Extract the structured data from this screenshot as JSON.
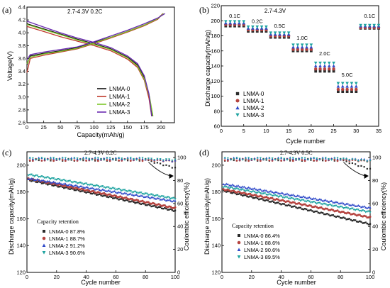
{
  "colors": {
    "LNMA-0": "#2b2b2b",
    "LNMA-1": "#b5433f",
    "LNMA-2": "#2f49c9",
    "LNMA-3": "#1ea3a0",
    "voltage_LNMA-0": "#111111",
    "voltage_LNMA-1": "#c0392b",
    "voltage_LNMA-2": "#7dc62a",
    "voltage_LNMA-3": "#6a2bb0"
  },
  "chart_data": [
    {
      "panel": "(a)",
      "type": "line",
      "annotation": "2.7-4.3V 0.2C",
      "xlabel": "Capacity(mAh/g)",
      "ylabel": "Voltage(V)",
      "xlim": [
        0,
        220
      ],
      "ylim": [
        2.6,
        4.4
      ],
      "xticks": [
        "0",
        "25",
        "50",
        "75",
        "100",
        "125",
        "150",
        "175",
        "200"
      ],
      "yticks": [
        "2.6",
        "2.8",
        "3.0",
        "3.2",
        "3.4",
        "3.6",
        "3.8",
        "4.0",
        "4.2",
        "4.4"
      ],
      "legend": {
        "placement": "bottom-right",
        "entries": [
          "LNMA-0",
          "LNMA-1",
          "LNMA-2",
          "LNMA-3"
        ]
      },
      "series": [
        {
          "name": "LNMA-0",
          "charge": [
            [
              0,
              3.5
            ],
            [
              5,
              3.64
            ],
            [
              25,
              3.68
            ],
            [
              50,
              3.72
            ],
            [
              75,
              3.77
            ],
            [
              100,
              3.85
            ],
            [
              125,
              3.93
            ],
            [
              150,
              4.02
            ],
            [
              175,
              4.12
            ],
            [
              195,
              4.22
            ],
            [
              203,
              4.3
            ]
          ],
          "discharge": [
            [
              0,
              4.14
            ],
            [
              25,
              4.06
            ],
            [
              50,
              3.98
            ],
            [
              75,
              3.9
            ],
            [
              100,
              3.83
            ],
            [
              125,
              3.75
            ],
            [
              150,
              3.62
            ],
            [
              165,
              3.5
            ],
            [
              175,
              3.3
            ],
            [
              182,
              3.0
            ],
            [
              187,
              2.7
            ]
          ]
        },
        {
          "name": "LNMA-1",
          "charge": [
            [
              0,
              3.38
            ],
            [
              5,
              3.6
            ],
            [
              25,
              3.65
            ],
            [
              50,
              3.7
            ],
            [
              75,
              3.75
            ],
            [
              100,
              3.83
            ],
            [
              125,
              3.92
            ],
            [
              150,
              4.01
            ],
            [
              175,
              4.11
            ],
            [
              195,
              4.21
            ],
            [
              203,
              4.3
            ]
          ],
          "discharge": [
            [
              0,
              4.1
            ],
            [
              25,
              4.02
            ],
            [
              50,
              3.94
            ],
            [
              75,
              3.87
            ],
            [
              100,
              3.8
            ],
            [
              125,
              3.72
            ],
            [
              150,
              3.59
            ],
            [
              165,
              3.46
            ],
            [
              175,
              3.26
            ],
            [
              182,
              2.98
            ],
            [
              186,
              2.7
            ]
          ]
        },
        {
          "name": "LNMA-2",
          "charge": [
            [
              0,
              3.52
            ],
            [
              5,
              3.62
            ],
            [
              25,
              3.67
            ],
            [
              50,
              3.71
            ],
            [
              75,
              3.76
            ],
            [
              100,
              3.84
            ],
            [
              125,
              3.93
            ],
            [
              150,
              4.02
            ],
            [
              175,
              4.12
            ],
            [
              195,
              4.22
            ],
            [
              204,
              4.3
            ]
          ],
          "discharge": [
            [
              0,
              4.13
            ],
            [
              25,
              4.05
            ],
            [
              50,
              3.97
            ],
            [
              75,
              3.89
            ],
            [
              100,
              3.82
            ],
            [
              125,
              3.74
            ],
            [
              150,
              3.61
            ],
            [
              165,
              3.48
            ],
            [
              175,
              3.28
            ],
            [
              183,
              3.0
            ],
            [
              188,
              2.7
            ]
          ]
        },
        {
          "name": "LNMA-3",
          "charge": [
            [
              0,
              3.58
            ],
            [
              5,
              3.66
            ],
            [
              25,
              3.7
            ],
            [
              50,
              3.74
            ],
            [
              75,
              3.78
            ],
            [
              100,
              3.86
            ],
            [
              125,
              3.95
            ],
            [
              150,
              4.04
            ],
            [
              175,
              4.14
            ],
            [
              195,
              4.23
            ],
            [
              206,
              4.3
            ]
          ],
          "discharge": [
            [
              0,
              4.18
            ],
            [
              25,
              4.09
            ],
            [
              50,
              4.0
            ],
            [
              75,
              3.92
            ],
            [
              100,
              3.85
            ],
            [
              125,
              3.77
            ],
            [
              150,
              3.64
            ],
            [
              165,
              3.52
            ],
            [
              175,
              3.33
            ],
            [
              182,
              3.05
            ],
            [
              186,
              2.7
            ]
          ]
        }
      ]
    },
    {
      "panel": "(b)",
      "type": "scatter",
      "annotation": "2.7-4.3V",
      "xlabel": "Cycle number",
      "ylabel": "Discharge capacity(mAh/g)",
      "xlim": [
        0,
        35
      ],
      "ylim": [
        60,
        220
      ],
      "xticks": [
        "0",
        "5",
        "10",
        "15",
        "20",
        "25",
        "30",
        "35"
      ],
      "yticks": [
        "60",
        "80",
        "100",
        "120",
        "140",
        "160",
        "180",
        "200",
        "220"
      ],
      "legend": {
        "placement": "bottom-left",
        "entries": [
          "LNMA-0",
          "LNMA-1",
          "LNMA-2",
          "LNMA-3"
        ]
      },
      "rate_labels": [
        {
          "text": "0.1C",
          "x": 3,
          "y": 204
        },
        {
          "text": "0.2C",
          "x": 8,
          "y": 197
        },
        {
          "text": "0.5C",
          "x": 13,
          "y": 191
        },
        {
          "text": "1.0C",
          "x": 18,
          "y": 175
        },
        {
          "text": "2.0C",
          "x": 23,
          "y": 154
        },
        {
          "text": "5.0C",
          "x": 28,
          "y": 126
        },
        {
          "text": "0.1C",
          "x": 33,
          "y": 204
        }
      ],
      "segments": [
        {
          "x_range": [
            1,
            5
          ],
          "values": {
            "LNMA-0": 193,
            "LNMA-1": 195,
            "LNMA-2": 197,
            "LNMA-3": 199
          }
        },
        {
          "x_range": [
            6,
            10
          ],
          "values": {
            "LNMA-0": 186,
            "LNMA-1": 188,
            "LNMA-2": 190,
            "LNMA-3": 192
          }
        },
        {
          "x_range": [
            11,
            15
          ],
          "values": {
            "LNMA-0": 178,
            "LNMA-1": 180,
            "LNMA-2": 182,
            "LNMA-3": 184
          }
        },
        {
          "x_range": [
            16,
            20
          ],
          "values": {
            "LNMA-0": 160,
            "LNMA-1": 162,
            "LNMA-2": 165,
            "LNMA-3": 168
          }
        },
        {
          "x_range": [
            21,
            25
          ],
          "values": {
            "LNMA-0": 133,
            "LNMA-1": 136,
            "LNMA-2": 140,
            "LNMA-3": 144
          }
        },
        {
          "x_range": [
            26,
            30
          ],
          "values": {
            "LNMA-0": 106,
            "LNMA-1": 109,
            "LNMA-2": 113,
            "LNMA-3": 117
          }
        },
        {
          "x_range": [
            31,
            35
          ],
          "values": {
            "LNMA-0": 190,
            "LNMA-1": 191,
            "LNMA-2": 193,
            "LNMA-3": 194
          }
        }
      ]
    },
    {
      "panel": "(c)",
      "type": "scatter",
      "annotation": "2.7-4.3V 0.2C",
      "xlabel": "Cycle number",
      "ylabel": "Discharge capacity(mAh/g)",
      "y2label": "Coulombic efficiency(%)",
      "xlim": [
        0,
        100
      ],
      "ylim": [
        120,
        210
      ],
      "y2lim": [
        0,
        105
      ],
      "xticks": [
        "0",
        "20",
        "40",
        "60",
        "80",
        "100"
      ],
      "yticks": [
        "120",
        "140",
        "160",
        "180",
        "200"
      ],
      "y2ticks": [
        "0",
        "20",
        "40",
        "60",
        "80",
        "100"
      ],
      "legend": {
        "title": "Capacity retention",
        "placement": "bottom-left",
        "entries": [
          "LNMA-0 87.8%",
          "LNMA-1 88.7%",
          "LNMA-2 91.2%",
          "LNMA-3 90.6%"
        ]
      },
      "series": [
        {
          "name": "LNMA-0",
          "start": 189,
          "end": 166,
          "ce": 98,
          "ce_end": 91
        },
        {
          "name": "LNMA-1",
          "start": 190,
          "end": 168,
          "ce": 98,
          "ce_end": 97
        },
        {
          "name": "LNMA-2",
          "start": 190,
          "end": 173,
          "ce": 99,
          "ce_end": 97
        },
        {
          "name": "LNMA-3",
          "start": 193,
          "end": 175,
          "ce": 99,
          "ce_end": 98
        }
      ]
    },
    {
      "panel": "(d)",
      "type": "scatter",
      "annotation": "2.7-4.3V 0.5C",
      "xlabel": "Cycle number",
      "ylabel": "Discharge capacity(mAh/g)",
      "y2label": "Coulombic efficiency(%)",
      "xlim": [
        0,
        100
      ],
      "ylim": [
        120,
        210
      ],
      "y2lim": [
        0,
        105
      ],
      "xticks": [
        "0",
        "20",
        "40",
        "60",
        "80",
        "100"
      ],
      "yticks": [
        "120",
        "140",
        "160",
        "180",
        "200"
      ],
      "y2ticks": [
        "0",
        "20",
        "40",
        "60",
        "80",
        "100"
      ],
      "legend": {
        "title": "Capacity retention",
        "placement": "bottom-left",
        "entries": [
          "LNMA-0 86.4%",
          "LNMA-1 88.6%",
          "LNMA-2 90.6%",
          "LNMA-3 89.5%"
        ]
      },
      "series": [
        {
          "name": "LNMA-0",
          "start": 181,
          "end": 156,
          "ce": 98,
          "ce_end": 90
        },
        {
          "name": "LNMA-1",
          "start": 182,
          "end": 161,
          "ce": 98,
          "ce_end": 97
        },
        {
          "name": "LNMA-2",
          "start": 186,
          "end": 168,
          "ce": 99,
          "ce_end": 98
        },
        {
          "name": "LNMA-3",
          "start": 184,
          "end": 165,
          "ce": 99,
          "ce_end": 97
        }
      ]
    }
  ]
}
